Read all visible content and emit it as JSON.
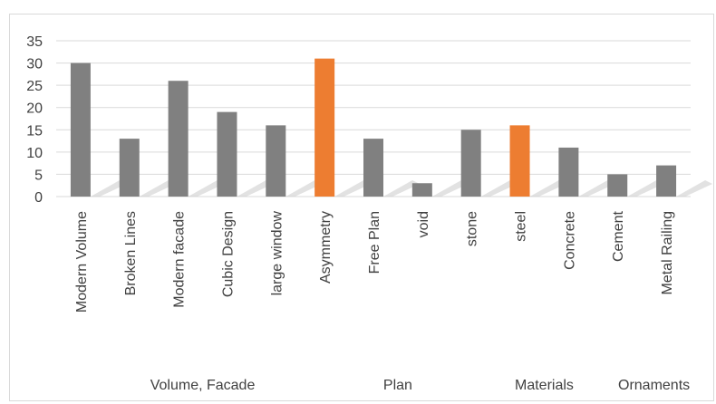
{
  "chart_data": {
    "type": "bar",
    "title": "",
    "xlabel": "",
    "ylabel": "",
    "ylim": [
      0,
      35
    ],
    "yticks": [
      0,
      5,
      10,
      15,
      20,
      25,
      30,
      35
    ],
    "grid": true,
    "legend": "none",
    "categories": [
      "Modern Volume",
      "Broken Lines",
      "Modern facade",
      "Cubic Design",
      "large window",
      "Asymmetry",
      "Free Plan",
      "void",
      "stone",
      "steel",
      "Concrete",
      "Cement",
      "Metal Railing"
    ],
    "values": [
      30,
      13,
      26,
      19,
      16,
      31,
      13,
      3,
      15,
      16,
      11,
      5,
      7
    ],
    "highlighted": [
      "Asymmetry",
      "steel"
    ],
    "groups": [
      {
        "label": "Volume, Facade",
        "categories": [
          "Modern Volume",
          "Broken Lines",
          "Modern facade",
          "Cubic Design",
          "large window",
          "Asymmetry"
        ]
      },
      {
        "label": "Plan",
        "categories": [
          "Free Plan",
          "void"
        ]
      },
      {
        "label": "Materials",
        "categories": [
          "stone",
          "steel",
          "Concrete",
          "Cement"
        ]
      },
      {
        "label": "Ornaments",
        "categories": [
          "Metal Railing"
        ]
      }
    ],
    "colors": {
      "bar": "#808080",
      "highlight": "#ed7d31",
      "grid": "#d9d9d9",
      "text": "#404040"
    }
  }
}
